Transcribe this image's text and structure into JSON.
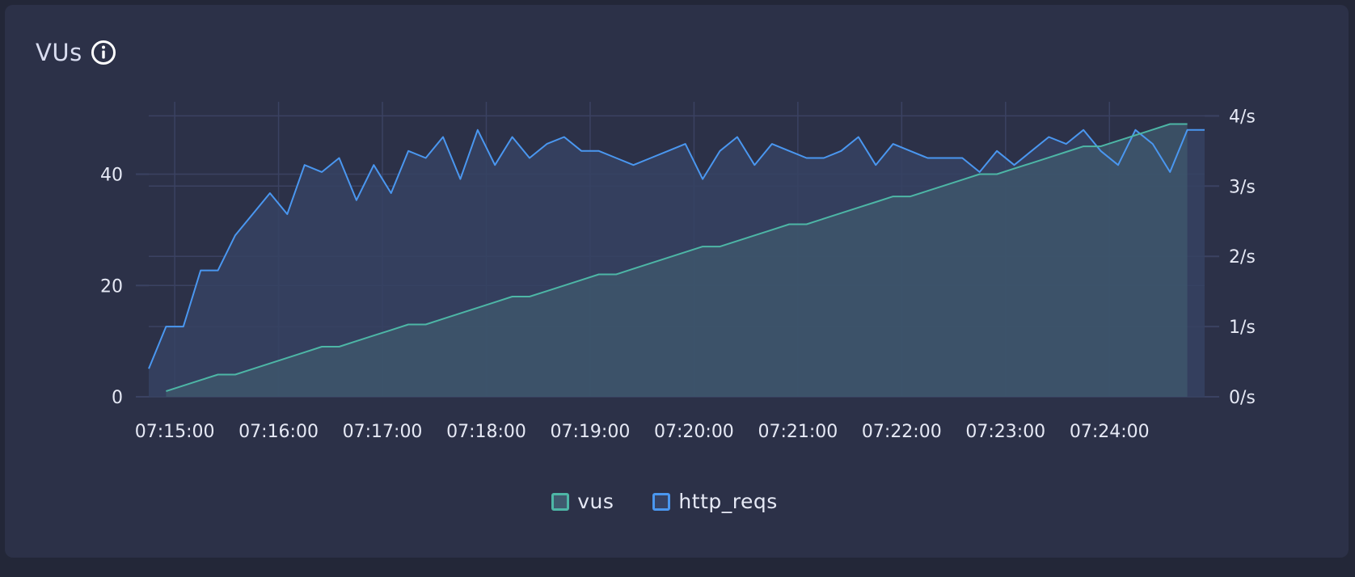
{
  "panel": {
    "title": "VUs",
    "title_icon": "info-icon"
  },
  "colors": {
    "vus_line": "#4db6a6",
    "vus_fill": "#3f5a6e",
    "http_line": "#4a97f0",
    "http_fill": "#364263",
    "grid": "#3b4262",
    "text": "#e6e9f5"
  },
  "chart_data": {
    "type": "line",
    "x": [
      "07:14:45",
      "07:14:55",
      "07:15:05",
      "07:15:15",
      "07:15:25",
      "07:15:35",
      "07:15:45",
      "07:15:55",
      "07:16:05",
      "07:16:15",
      "07:16:25",
      "07:16:35",
      "07:16:45",
      "07:16:55",
      "07:17:05",
      "07:17:15",
      "07:17:25",
      "07:17:35",
      "07:17:45",
      "07:17:55",
      "07:18:05",
      "07:18:15",
      "07:18:25",
      "07:18:35",
      "07:18:45",
      "07:18:55",
      "07:19:05",
      "07:19:15",
      "07:19:25",
      "07:19:35",
      "07:19:45",
      "07:19:55",
      "07:20:05",
      "07:20:15",
      "07:20:25",
      "07:20:35",
      "07:20:45",
      "07:20:55",
      "07:21:05",
      "07:21:15",
      "07:21:25",
      "07:21:35",
      "07:21:45",
      "07:21:55",
      "07:22:05",
      "07:22:15",
      "07:22:25",
      "07:22:35",
      "07:22:45",
      "07:22:55",
      "07:23:05",
      "07:23:15",
      "07:23:25",
      "07:23:35",
      "07:23:45",
      "07:23:55",
      "07:24:05",
      "07:24:15",
      "07:24:25",
      "07:24:35",
      "07:24:45",
      "07:24:55"
    ],
    "x_ticks": [
      "07:15:00",
      "07:16:00",
      "07:17:00",
      "07:18:00",
      "07:19:00",
      "07:20:00",
      "07:21:00",
      "07:22:00",
      "07:23:00",
      "07:24:00"
    ],
    "y_left": {
      "ticks": [
        "0",
        "20",
        "40"
      ],
      "range": [
        0,
        53
      ]
    },
    "y_right": {
      "ticks": [
        "0/s",
        "1/s",
        "2/s",
        "3/s",
        "4/s"
      ],
      "range": [
        0,
        4.2
      ]
    },
    "series": [
      {
        "name": "vus",
        "axis": "left",
        "values": [
          null,
          1,
          2,
          3,
          4,
          4,
          5,
          6,
          7,
          8,
          9,
          9,
          10,
          11,
          12,
          13,
          13,
          14,
          15,
          16,
          17,
          18,
          18,
          19,
          20,
          21,
          22,
          22,
          23,
          24,
          25,
          26,
          27,
          27,
          28,
          29,
          30,
          31,
          31,
          32,
          33,
          34,
          35,
          36,
          36,
          37,
          38,
          39,
          40,
          40,
          41,
          42,
          43,
          44,
          45,
          45,
          46,
          47,
          48,
          49,
          49,
          null
        ]
      },
      {
        "name": "http_reqs",
        "axis": "right",
        "values": [
          0.4,
          1.0,
          1.0,
          1.8,
          1.8,
          2.3,
          2.6,
          2.9,
          2.6,
          3.3,
          3.2,
          3.4,
          2.8,
          3.3,
          2.9,
          3.5,
          3.4,
          3.7,
          3.1,
          3.8,
          3.3,
          3.7,
          3.4,
          3.6,
          3.7,
          3.5,
          3.5,
          3.4,
          3.3,
          3.4,
          3.5,
          3.6,
          3.1,
          3.5,
          3.7,
          3.3,
          3.6,
          3.5,
          3.4,
          3.4,
          3.5,
          3.7,
          3.3,
          3.6,
          3.5,
          3.4,
          3.4,
          3.4,
          3.2,
          3.5,
          3.3,
          3.5,
          3.7,
          3.6,
          3.8,
          3.5,
          3.3,
          3.8,
          3.6,
          3.2,
          3.8,
          3.8
        ]
      }
    ],
    "legend": [
      "vus",
      "http_reqs"
    ],
    "legend_position": "bottom-center",
    "grid": true
  }
}
